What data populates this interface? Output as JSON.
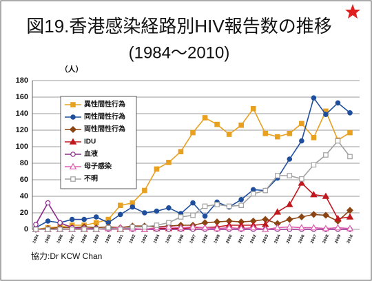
{
  "chart_data": {
    "type": "line",
    "title": "図19.香港感染経路別HIV報告数の推移",
    "subtitle": "(1984〜2010)",
    "y_label": "（人）",
    "footer": "協力:Dr KCW Chan",
    "categories": [
      "1984",
      "1985",
      "1986",
      "1987",
      "1988",
      "1989",
      "1990",
      "1991",
      "1992",
      "1993",
      "1994",
      "1995",
      "1996",
      "1997",
      "1998",
      "1999",
      "2000",
      "2001",
      "2002",
      "2003",
      "2004",
      "2005",
      "2006",
      "2007",
      "2008",
      "2009",
      "2010"
    ],
    "ylim": [
      0,
      180
    ],
    "yticks": [
      0,
      20,
      40,
      60,
      80,
      100,
      120,
      140,
      160,
      180
    ],
    "legend": "upper left",
    "series": [
      {
        "name": "異性間性行為",
        "color": "#e8a020",
        "marker": "square",
        "values": [
          0,
          2,
          3,
          5,
          5,
          8,
          12,
          29,
          32,
          47,
          73,
          81,
          94,
          117,
          135,
          127,
          115,
          126,
          146,
          116,
          112,
          116,
          128,
          111,
          143,
          108,
          117
        ]
      },
      {
        "name": "同性間性行為",
        "color": "#1f4e9c",
        "marker": "circle",
        "values": [
          2,
          10,
          8,
          12,
          12,
          15,
          8,
          18,
          27,
          20,
          22,
          26,
          19,
          32,
          16,
          33,
          27,
          36,
          48,
          47,
          62,
          85,
          107,
          159,
          139,
          153,
          141
        ]
      },
      {
        "name": "両性間性行為",
        "color": "#8b4513",
        "marker": "diamond",
        "values": [
          0,
          1,
          2,
          2,
          3,
          2,
          3,
          2,
          4,
          4,
          3,
          4,
          5,
          5,
          8,
          9,
          10,
          9,
          10,
          12,
          7,
          12,
          15,
          18,
          17,
          10,
          23
        ]
      },
      {
        "name": "IDU",
        "color": "#c0181f",
        "marker": "triangle",
        "values": [
          0,
          0,
          0,
          0,
          0,
          0,
          1,
          0,
          1,
          0,
          1,
          1,
          1,
          2,
          2,
          3,
          5,
          5,
          5,
          6,
          21,
          30,
          56,
          42,
          40,
          13,
          15
        ]
      },
      {
        "name": "血液",
        "color": "#8a2a8a",
        "marker": "open-circle",
        "values": [
          6,
          32,
          8,
          2,
          1,
          1,
          0,
          1,
          0,
          0,
          0,
          0,
          0,
          0,
          0,
          0,
          0,
          0,
          0,
          0,
          0,
          0,
          0,
          0,
          0,
          0,
          0
        ]
      },
      {
        "name": "母子感染",
        "color": "#e060b0",
        "marker": "open-triangle",
        "values": [
          0,
          0,
          0,
          0,
          1,
          0,
          1,
          2,
          1,
          0,
          2,
          3,
          2,
          3,
          2,
          1,
          2,
          1,
          2,
          0,
          2,
          3,
          2,
          2,
          1,
          2,
          1
        ]
      },
      {
        "name": "不明",
        "color": "#a0a0a0",
        "marker": "open-square",
        "values": [
          0,
          0,
          0,
          0,
          0,
          0,
          2,
          0,
          3,
          3,
          5,
          8,
          15,
          17,
          28,
          30,
          28,
          29,
          43,
          47,
          65,
          65,
          61,
          78,
          90,
          107,
          88
        ]
      }
    ]
  }
}
